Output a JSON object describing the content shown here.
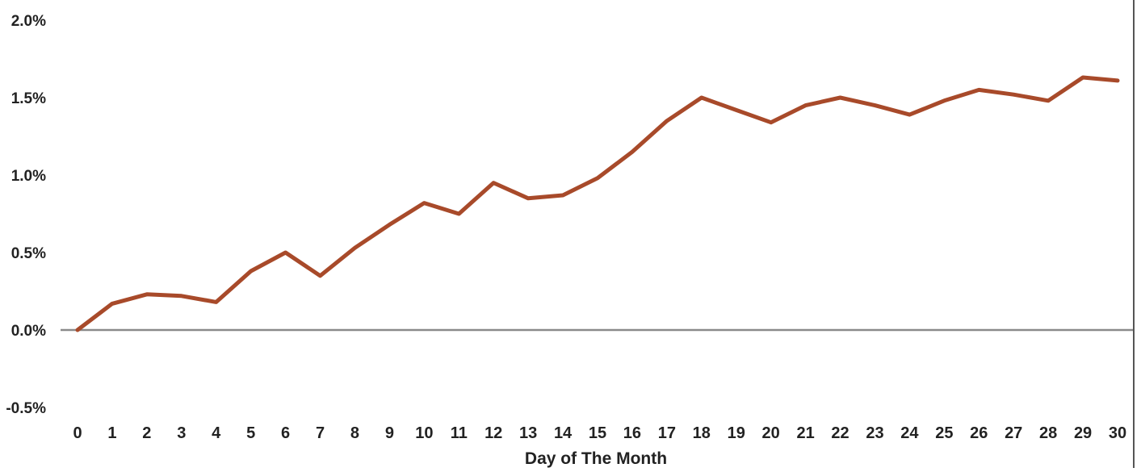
{
  "chart_data": {
    "type": "line",
    "title": "",
    "xlabel": "Day of The Month",
    "ylabel": "",
    "x": [
      0,
      1,
      2,
      3,
      4,
      5,
      6,
      7,
      8,
      9,
      10,
      11,
      12,
      13,
      14,
      15,
      16,
      17,
      18,
      19,
      20,
      21,
      22,
      23,
      24,
      25,
      26,
      27,
      28,
      29,
      30
    ],
    "x_tick_labels": [
      "0",
      "1",
      "2",
      "3",
      "4",
      "5",
      "6",
      "7",
      "8",
      "9",
      "10",
      "11",
      "12",
      "13",
      "14",
      "15",
      "16",
      "17",
      "18",
      "19",
      "20",
      "21",
      "22",
      "23",
      "24",
      "25",
      "26",
      "27",
      "28",
      "29",
      "30"
    ],
    "series": [
      {
        "values": [
          0.0,
          0.17,
          0.23,
          0.22,
          0.18,
          0.38,
          0.5,
          0.35,
          0.53,
          0.68,
          0.82,
          0.75,
          0.95,
          0.85,
          0.87,
          0.98,
          1.15,
          1.35,
          1.5,
          1.42,
          1.34,
          1.45,
          1.5,
          1.45,
          1.39,
          1.48,
          1.55,
          1.52,
          1.48,
          1.63,
          1.61
        ]
      }
    ],
    "ylim": [
      -0.5,
      2.0
    ],
    "y_ticks": [
      2.0,
      1.5,
      1.0,
      0.5,
      0.0,
      -0.5
    ],
    "y_tick_labels": [
      "2.0%",
      "1.5%",
      "1.0%",
      "0.5%",
      "0.0%",
      "-0.5%"
    ],
    "grid": false,
    "legend": "none",
    "colors": {
      "line": "#a84a2a",
      "zero_line": "#8a8a8a",
      "right_border": "#555555"
    }
  }
}
